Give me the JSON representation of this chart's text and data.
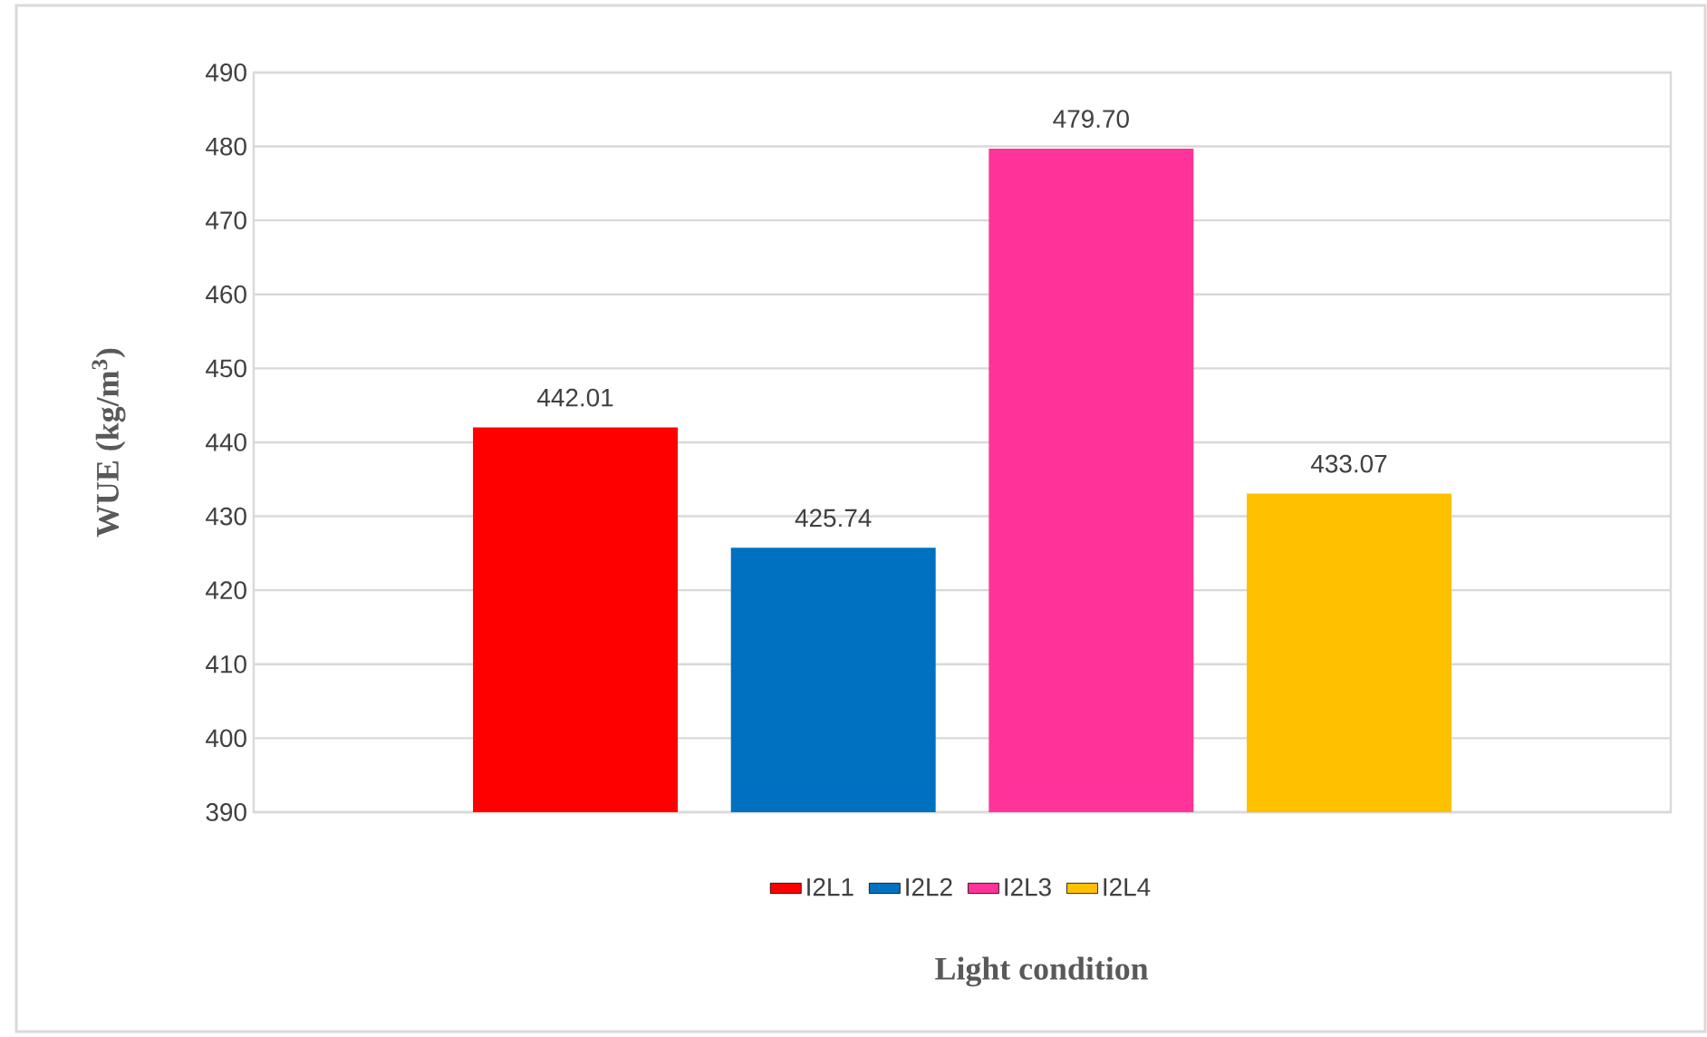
{
  "chart_data": {
    "type": "bar",
    "xlabel": "Light condition",
    "ylabel": "WUE (kg/m$^{3}$)",
    "categories": [
      null
    ],
    "series": [
      {
        "name": "I2L1",
        "color": "#ff0000",
        "values": [
          442.01
        ],
        "value_labels": [
          "442.01"
        ]
      },
      {
        "name": "I2L2",
        "color": "#0070c0",
        "values": [
          425.74
        ],
        "value_labels": [
          "425.74"
        ]
      },
      {
        "name": "I2L3",
        "color": "#ff3399",
        "values": [
          479.7
        ],
        "value_labels": [
          "479.70"
        ]
      },
      {
        "name": "I2L4",
        "color": "#ffc000",
        "values": [
          433.07
        ],
        "value_labels": [
          "433.07"
        ]
      }
    ],
    "ylim": [
      390,
      490
    ],
    "yticks": [
      390,
      400,
      410,
      420,
      430,
      440,
      450,
      460,
      470,
      480,
      490
    ],
    "grid": "y",
    "legend": "bottom"
  }
}
